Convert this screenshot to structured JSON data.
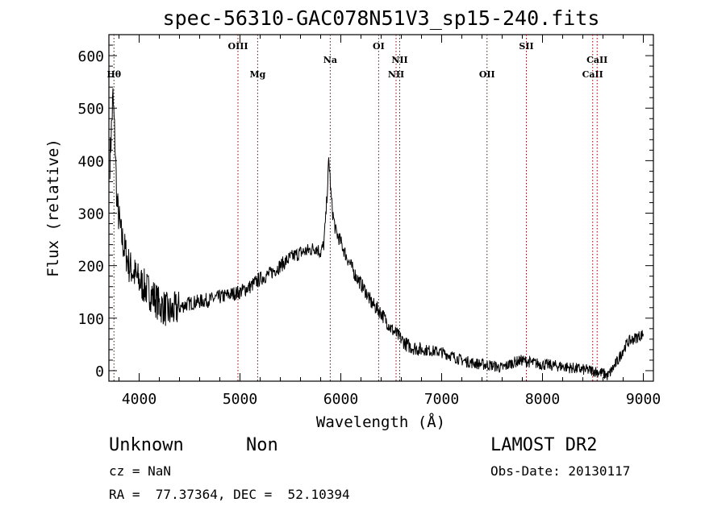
{
  "chart_data": {
    "type": "line",
    "title": "spec-56310-GAC078N51V3_sp15-240.fits",
    "xlabel": "Wavelength (Å)",
    "ylabel": "Flux (relative)",
    "xlim": [
      3700,
      9100
    ],
    "ylim": [
      -20,
      640
    ],
    "xticks": [
      4000,
      5000,
      6000,
      7000,
      8000,
      9000
    ],
    "yticks": [
      0,
      100,
      200,
      300,
      400,
      500,
      600
    ],
    "grid": false,
    "line_color": "#000000",
    "marker_color": "#8b0000",
    "series": [
      {
        "x": [
          3710,
          3740,
          3760,
          3780,
          3800,
          3820,
          3850,
          3880,
          3900,
          3950,
          4000,
          4050,
          4100,
          4150,
          4200,
          4250,
          4300,
          4350,
          4400,
          4450,
          4500,
          4600,
          4700,
          4800,
          4900,
          5000,
          5100,
          5200,
          5300,
          5400,
          5500,
          5600,
          5700,
          5750,
          5800,
          5830,
          5850,
          5870,
          5880,
          5890,
          5900,
          5920,
          5950,
          6000,
          6050,
          6100,
          6150,
          6200,
          6250,
          6300,
          6350,
          6400,
          6450,
          6500,
          6550,
          6600,
          6650,
          6700,
          6800,
          6900,
          7000,
          7100,
          7200,
          7300,
          7400,
          7500,
          7600,
          7650,
          7700,
          7800,
          7900,
          8000,
          8100,
          8200,
          8300,
          8400,
          8500,
          8600,
          8650,
          8700,
          8750,
          8800,
          8850,
          8900,
          8950,
          9000
        ],
        "y": [
          400,
          520,
          440,
          320,
          290,
          260,
          235,
          215,
          200,
          185,
          170,
          160,
          150,
          140,
          125,
          120,
          110,
          115,
          120,
          125,
          128,
          132,
          135,
          140,
          145,
          150,
          160,
          175,
          185,
          200,
          215,
          225,
          230,
          235,
          225,
          240,
          290,
          360,
          400,
          380,
          340,
          300,
          265,
          245,
          220,
          200,
          180,
          165,
          150,
          130,
          120,
          110,
          95,
          80,
          70,
          60,
          50,
          45,
          40,
          38,
          35,
          28,
          20,
          15,
          12,
          10,
          5,
          10,
          15,
          20,
          15,
          12,
          10,
          8,
          5,
          2,
          0,
          -5,
          -10,
          5,
          20,
          40,
          55,
          60,
          65,
          70
        ]
      }
    ],
    "line_markers": [
      {
        "label": "Hθ",
        "x": 3750,
        "row": "low"
      },
      {
        "label": "OIII",
        "x": 4980,
        "row": "high"
      },
      {
        "label": "Mg",
        "x": 5175,
        "row": "low"
      },
      {
        "label": "Na",
        "x": 5895,
        "row": "mid"
      },
      {
        "label": "OI",
        "x": 6375,
        "row": "high"
      },
      {
        "label": "NII",
        "x": 6548,
        "row": "low"
      },
      {
        "label": "NII",
        "x": 6584,
        "row": "mid"
      },
      {
        "label": "OII",
        "x": 7450,
        "row": "low"
      },
      {
        "label": "SII",
        "x": 7840,
        "row": "high"
      },
      {
        "label": "CaII",
        "x": 8498,
        "row": "low"
      },
      {
        "label": "CaII",
        "x": 8542,
        "row": "mid"
      }
    ]
  },
  "footer": {
    "object_type": "Unknown",
    "subclass": "Non",
    "survey": "LAMOST DR2",
    "cz": "cz = NaN",
    "obs_date": "Obs-Date: 20130117",
    "coords": "RA =  77.37364, DEC =  52.10394"
  }
}
